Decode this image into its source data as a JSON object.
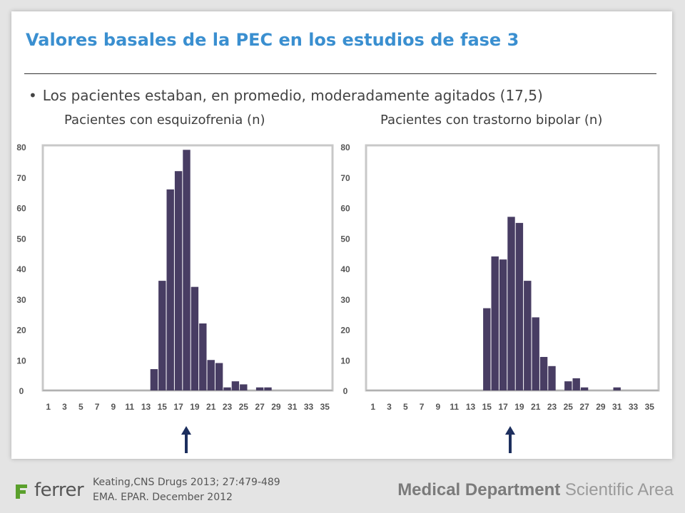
{
  "slide": {
    "title": "Valores basales de la PEC en los estudios de fase 3",
    "bullet": "Los pacientes estaban, en promedio, moderadamente agitados (17,5)",
    "bullet_symbol": "•"
  },
  "footer": {
    "logo_text": "ferrer",
    "ref1": "Keating,CNS Drugs 2013; 27:479-489",
    "ref2": "EMA. EPAR. December 2012",
    "dept_bold": "Medical Department",
    "dept_light": "Scientific Area"
  },
  "colors": {
    "bar": "#483d63",
    "title": "#3a8fd0",
    "arrow": "#1d2f5e",
    "logo_green": "#5aa02c"
  },
  "chart_data": [
    {
      "type": "bar",
      "title": "Pacientes con esquizofrenia (n)",
      "xlabel": "",
      "ylabel": "",
      "ylim": [
        0,
        80
      ],
      "yticks": [
        "0",
        "10",
        "20",
        "30",
        "40",
        "50",
        "60",
        "70",
        "80"
      ],
      "xtick_labels": [
        "1",
        "3",
        "5",
        "7",
        "9",
        "11",
        "13",
        "15",
        "17",
        "19",
        "21",
        "23",
        "25",
        "27",
        "29",
        "31",
        "33",
        "35"
      ],
      "categories": [
        1,
        2,
        3,
        4,
        5,
        6,
        7,
        8,
        9,
        10,
        11,
        12,
        13,
        14,
        15,
        16,
        17,
        18,
        19,
        20,
        21,
        22,
        23,
        24,
        25,
        26,
        27,
        28,
        29,
        30,
        31,
        32,
        33,
        34,
        35
      ],
      "values": [
        0,
        0,
        0,
        0,
        0,
        0,
        0,
        0,
        0,
        0,
        0,
        0,
        0,
        7,
        36,
        66,
        72,
        79,
        34,
        22,
        10,
        9,
        1,
        3,
        2,
        0,
        1,
        1,
        0,
        0,
        0,
        0,
        0,
        0,
        0
      ],
      "marker_x": 17.5,
      "grid": false
    },
    {
      "type": "bar",
      "title": "Pacientes con trastorno bipolar (n)",
      "xlabel": "",
      "ylabel": "",
      "ylim": [
        0,
        80
      ],
      "yticks": [
        "0",
        "10",
        "20",
        "30",
        "40",
        "50",
        "60",
        "70",
        "80"
      ],
      "xtick_labels": [
        "1",
        "3",
        "5",
        "7",
        "9",
        "11",
        "13",
        "15",
        "17",
        "19",
        "21",
        "23",
        "25",
        "27",
        "29",
        "31",
        "33",
        "35"
      ],
      "categories": [
        1,
        2,
        3,
        4,
        5,
        6,
        7,
        8,
        9,
        10,
        11,
        12,
        13,
        14,
        15,
        16,
        17,
        18,
        19,
        20,
        21,
        22,
        23,
        24,
        25,
        26,
        27,
        28,
        29,
        30,
        31,
        32,
        33,
        34,
        35
      ],
      "values": [
        0,
        0,
        0,
        0,
        0,
        0,
        0,
        0,
        0,
        0,
        0,
        0,
        0,
        0,
        27,
        44,
        43,
        57,
        55,
        36,
        24,
        11,
        8,
        0,
        3,
        4,
        1,
        0,
        0,
        0,
        1,
        0,
        0,
        0,
        0
      ],
      "marker_x": 17.5,
      "grid": false
    }
  ]
}
